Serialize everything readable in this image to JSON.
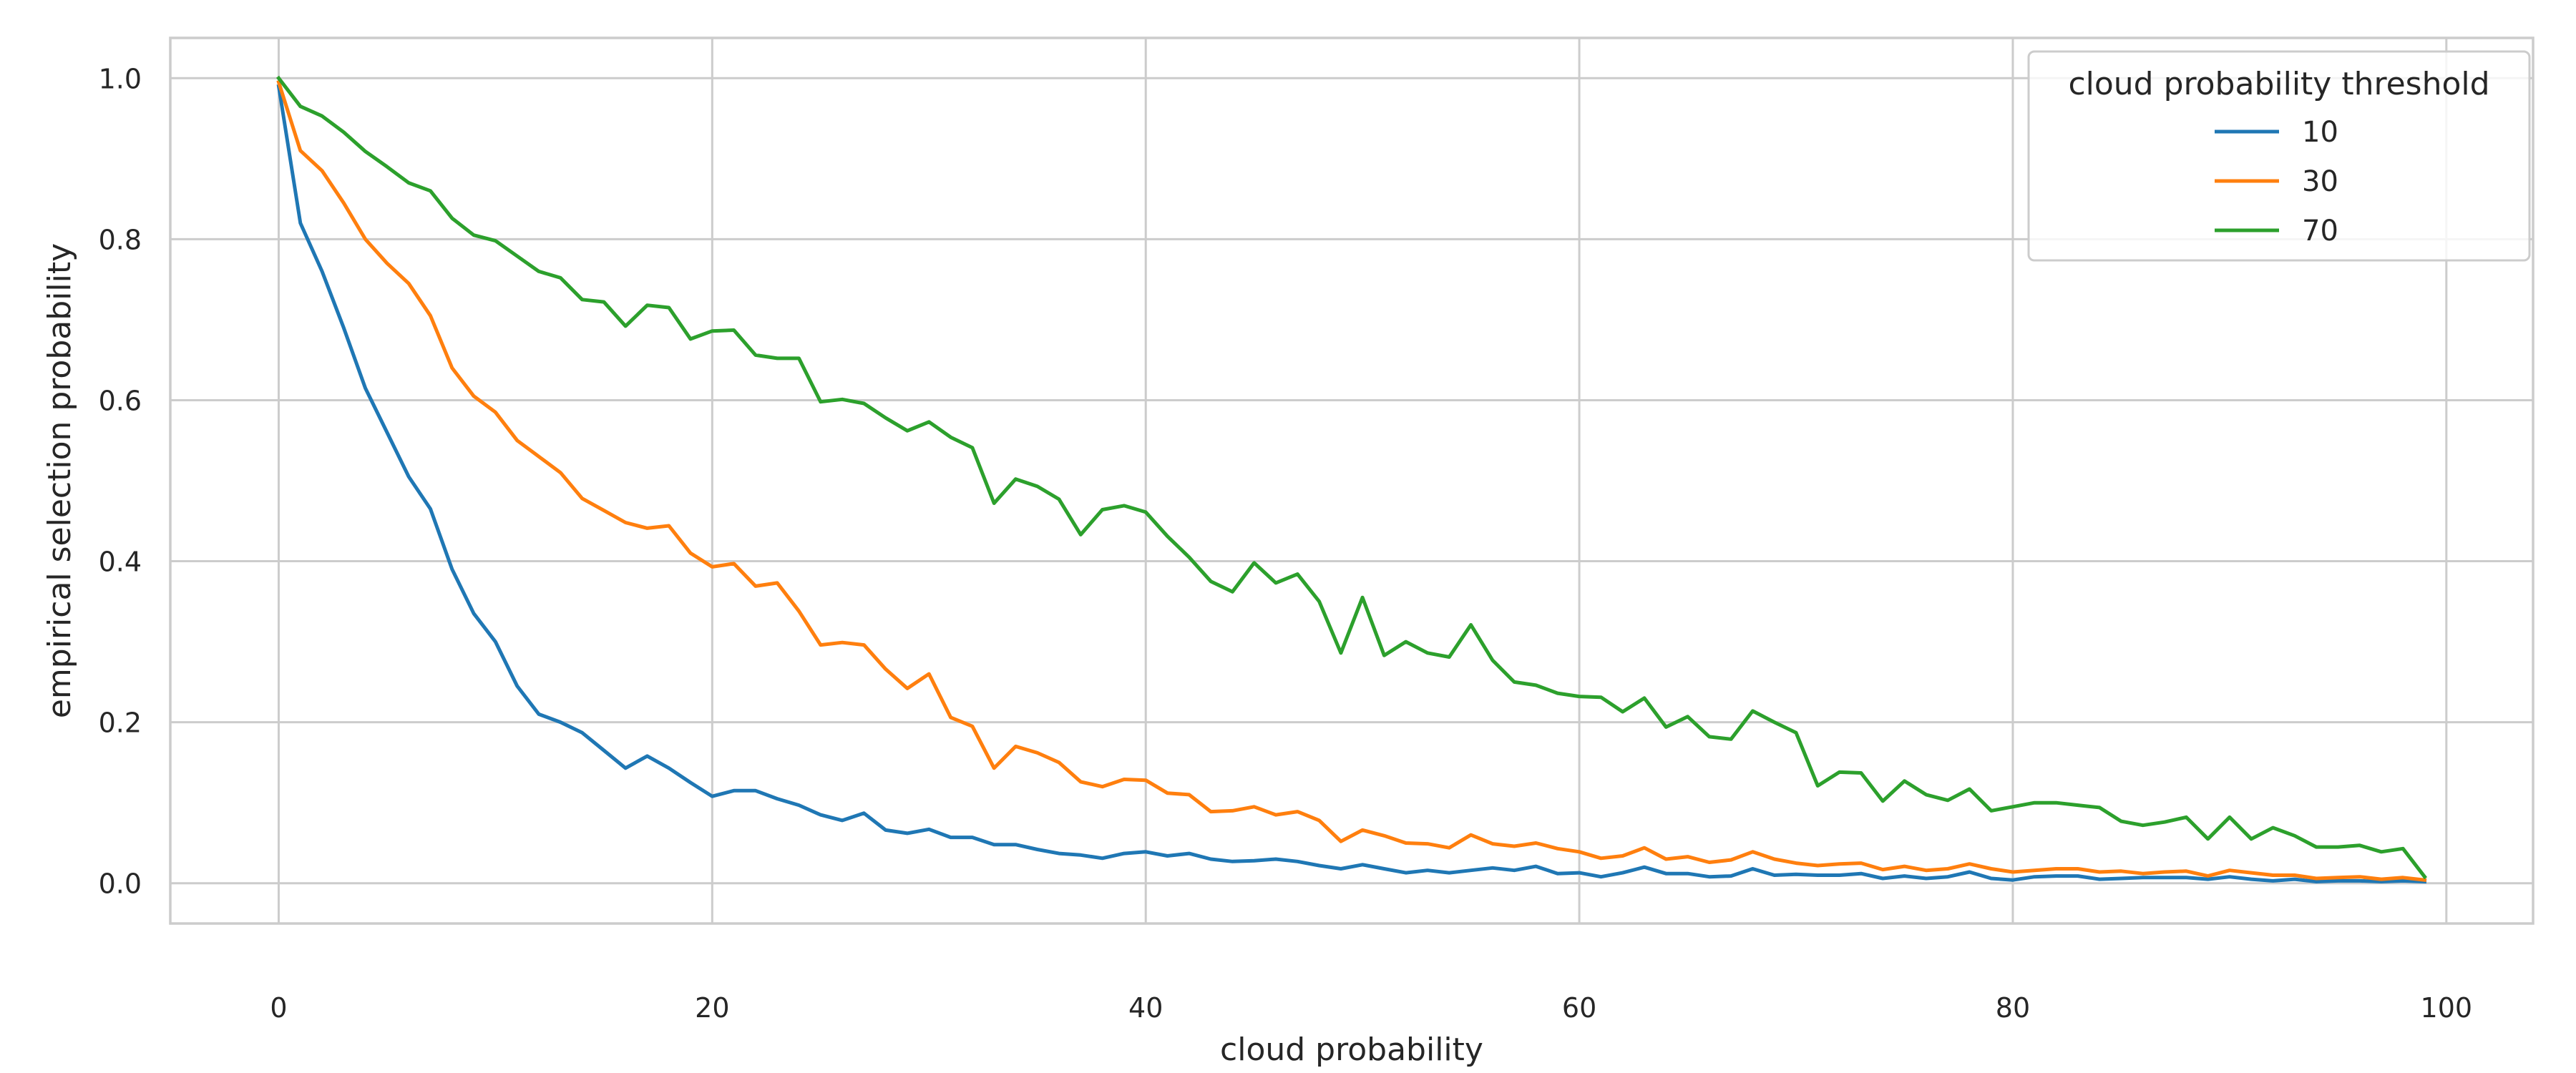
{
  "chart_data": {
    "type": "line",
    "title": "",
    "xlabel": "cloud probability",
    "ylabel": "empirical selection probability",
    "xlim": [
      -5,
      104
    ],
    "ylim": [
      -0.05,
      1.05
    ],
    "xticks": [
      0,
      20,
      40,
      60,
      80,
      100
    ],
    "yticks": [
      0.0,
      0.2,
      0.4,
      0.6,
      0.8,
      1.0
    ],
    "xtick_labels": [
      "0",
      "20",
      "40",
      "60",
      "80",
      "100"
    ],
    "ytick_labels": [
      "0.0",
      "0.2",
      "0.4",
      "0.6",
      "0.8",
      "1.0"
    ],
    "grid": true,
    "legend": {
      "title": "cloud probability threshold",
      "placement": "top-right"
    },
    "series": [
      {
        "name": "10",
        "color": "#1f77b4",
        "x": [
          0,
          1,
          2,
          3,
          4,
          5,
          6,
          7,
          8,
          9,
          10,
          11,
          12,
          13,
          14,
          15,
          16,
          17,
          18,
          19,
          20,
          21,
          22,
          23,
          24,
          25,
          26,
          27,
          28,
          29,
          30,
          31,
          32,
          33,
          34,
          35,
          36,
          37,
          38,
          39,
          40,
          41,
          42,
          43,
          44,
          45,
          46,
          47,
          48,
          49,
          50,
          51,
          52,
          53,
          54,
          55,
          56,
          57,
          58,
          59,
          60,
          61,
          62,
          63,
          64,
          65,
          66,
          67,
          68,
          69,
          70,
          71,
          72,
          73,
          74,
          75,
          76,
          77,
          78,
          79,
          80,
          81,
          82,
          83,
          84,
          85,
          86,
          87,
          88,
          89,
          90,
          91,
          92,
          93,
          94,
          95,
          96,
          97,
          98,
          99
        ],
        "y": [
          0.99,
          0.82,
          0.76,
          0.69,
          0.615,
          0.56,
          0.505,
          0.465,
          0.39,
          0.335,
          0.3,
          0.245,
          0.21,
          0.2,
          0.187,
          0.165,
          0.143,
          0.158,
          0.143,
          0.125,
          0.108,
          0.115,
          0.115,
          0.105,
          0.097,
          0.085,
          0.078,
          0.087,
          0.066,
          0.062,
          0.067,
          0.057,
          0.057,
          0.048,
          0.048,
          0.042,
          0.037,
          0.035,
          0.031,
          0.037,
          0.039,
          0.034,
          0.037,
          0.03,
          0.027,
          0.028,
          0.03,
          0.027,
          0.022,
          0.018,
          0.023,
          0.018,
          0.013,
          0.016,
          0.013,
          0.016,
          0.019,
          0.016,
          0.021,
          0.012,
          0.013,
          0.008,
          0.013,
          0.02,
          0.012,
          0.012,
          0.008,
          0.009,
          0.018,
          0.01,
          0.011,
          0.01,
          0.01,
          0.012,
          0.006,
          0.009,
          0.006,
          0.008,
          0.014,
          0.006,
          0.004,
          0.008,
          0.009,
          0.009,
          0.005,
          0.006,
          0.007,
          0.007,
          0.007,
          0.005,
          0.008,
          0.005,
          0.003,
          0.005,
          0.002,
          0.003,
          0.003,
          0.002,
          0.003,
          0.002
        ]
      },
      {
        "name": "30",
        "color": "#ff7f0e",
        "x": [
          0,
          1,
          2,
          3,
          4,
          5,
          6,
          7,
          8,
          9,
          10,
          11,
          12,
          13,
          14,
          15,
          16,
          17,
          18,
          19,
          20,
          21,
          22,
          23,
          24,
          25,
          26,
          27,
          28,
          29,
          30,
          31,
          32,
          33,
          34,
          35,
          36,
          37,
          38,
          39,
          40,
          41,
          42,
          43,
          44,
          45,
          46,
          47,
          48,
          49,
          50,
          51,
          52,
          53,
          54,
          55,
          56,
          57,
          58,
          59,
          60,
          61,
          62,
          63,
          64,
          65,
          66,
          67,
          68,
          69,
          70,
          71,
          72,
          73,
          74,
          75,
          76,
          77,
          78,
          79,
          80,
          81,
          82,
          83,
          84,
          85,
          86,
          87,
          88,
          89,
          90,
          91,
          92,
          93,
          94,
          95,
          96,
          97,
          98,
          99
        ],
        "y": [
          0.995,
          0.91,
          0.885,
          0.845,
          0.8,
          0.77,
          0.745,
          0.705,
          0.64,
          0.605,
          0.585,
          0.55,
          0.53,
          0.51,
          0.478,
          0.463,
          0.448,
          0.441,
          0.444,
          0.41,
          0.393,
          0.397,
          0.369,
          0.373,
          0.338,
          0.296,
          0.299,
          0.296,
          0.266,
          0.242,
          0.26,
          0.206,
          0.195,
          0.143,
          0.17,
          0.162,
          0.15,
          0.126,
          0.12,
          0.129,
          0.128,
          0.112,
          0.11,
          0.089,
          0.09,
          0.095,
          0.085,
          0.089,
          0.078,
          0.052,
          0.066,
          0.059,
          0.05,
          0.049,
          0.044,
          0.06,
          0.049,
          0.046,
          0.05,
          0.043,
          0.039,
          0.031,
          0.034,
          0.044,
          0.03,
          0.033,
          0.026,
          0.029,
          0.039,
          0.03,
          0.025,
          0.022,
          0.024,
          0.025,
          0.017,
          0.021,
          0.016,
          0.018,
          0.024,
          0.018,
          0.014,
          0.016,
          0.018,
          0.018,
          0.014,
          0.015,
          0.012,
          0.014,
          0.015,
          0.009,
          0.016,
          0.013,
          0.01,
          0.01,
          0.006,
          0.007,
          0.008,
          0.005,
          0.007,
          0.004
        ]
      },
      {
        "name": "70",
        "color": "#2ca02c",
        "x": [
          0,
          1,
          2,
          3,
          4,
          5,
          6,
          7,
          8,
          9,
          10,
          11,
          12,
          13,
          14,
          15,
          16,
          17,
          18,
          19,
          20,
          21,
          22,
          23,
          24,
          25,
          26,
          27,
          28,
          29,
          30,
          31,
          32,
          33,
          34,
          35,
          36,
          37,
          38,
          39,
          40,
          41,
          42,
          43,
          44,
          45,
          46,
          47,
          48,
          49,
          50,
          51,
          52,
          53,
          54,
          55,
          56,
          57,
          58,
          59,
          60,
          61,
          62,
          63,
          64,
          65,
          66,
          67,
          68,
          69,
          70,
          71,
          72,
          73,
          74,
          75,
          76,
          77,
          78,
          79,
          80,
          81,
          82,
          83,
          84,
          85,
          86,
          87,
          88,
          89,
          90,
          91,
          92,
          93,
          94,
          95,
          96,
          97,
          98,
          99
        ],
        "y": [
          1.0,
          0.965,
          0.953,
          0.933,
          0.909,
          0.89,
          0.87,
          0.86,
          0.826,
          0.805,
          0.798,
          0.779,
          0.76,
          0.752,
          0.725,
          0.722,
          0.692,
          0.718,
          0.715,
          0.676,
          0.686,
          0.687,
          0.656,
          0.652,
          0.652,
          0.598,
          0.601,
          0.596,
          0.578,
          0.562,
          0.573,
          0.554,
          0.541,
          0.472,
          0.502,
          0.493,
          0.477,
          0.433,
          0.464,
          0.469,
          0.461,
          0.431,
          0.405,
          0.375,
          0.362,
          0.398,
          0.373,
          0.384,
          0.35,
          0.286,
          0.355,
          0.283,
          0.3,
          0.286,
          0.281,
          0.321,
          0.277,
          0.25,
          0.246,
          0.236,
          0.232,
          0.231,
          0.213,
          0.23,
          0.194,
          0.207,
          0.182,
          0.179,
          0.214,
          0.2,
          0.187,
          0.121,
          0.138,
          0.137,
          0.102,
          0.127,
          0.11,
          0.103,
          0.117,
          0.09,
          0.095,
          0.1,
          0.1,
          0.097,
          0.094,
          0.077,
          0.072,
          0.076,
          0.082,
          0.055,
          0.082,
          0.055,
          0.069,
          0.059,
          0.045,
          0.045,
          0.047,
          0.039,
          0.043,
          0.008
        ]
      }
    ]
  }
}
